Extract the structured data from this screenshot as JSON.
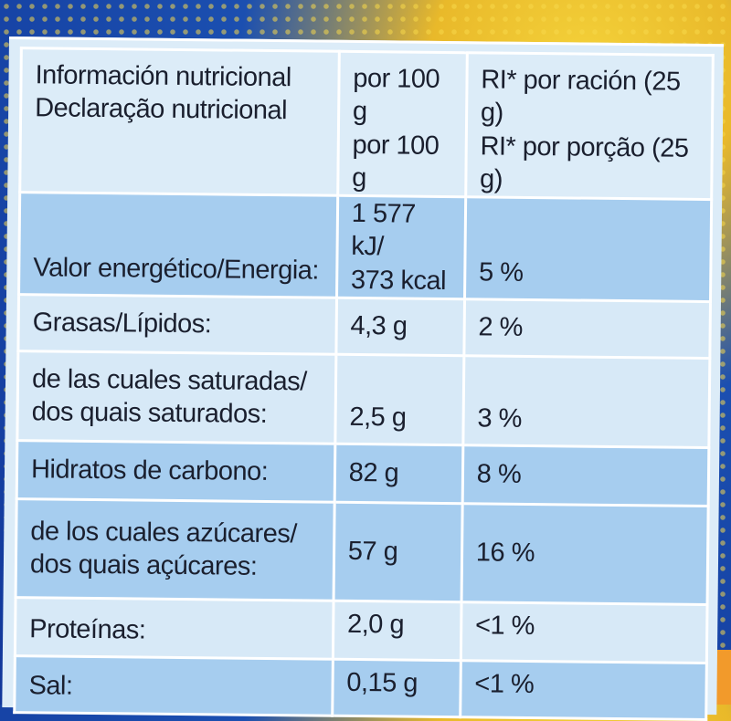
{
  "header": {
    "col1_line1": "Información nutricional",
    "col1_line2": "Declaração nutricional",
    "col2_line1": "por 100 g",
    "col2_line2": "por 100 g",
    "col3_line1": "RI* por ración (25 g)",
    "col3_line2": "RI* por porção (25 g)"
  },
  "rows": [
    {
      "label1": "Valor energético/Energia:",
      "label2": "",
      "per100_line1": "1 577 kJ/",
      "per100_line2": "373 kcal",
      "ri": "5 %"
    },
    {
      "label1": "Grasas/Lípidos:",
      "label2": "",
      "per100_line1": "4,3 g",
      "per100_line2": "",
      "ri": "2 %"
    },
    {
      "label1": "de las cuales saturadas/",
      "label2": "dos quais saturados:",
      "per100_line1": "2,5 g",
      "per100_line2": "",
      "ri": "3 %"
    },
    {
      "label1": "Hidratos de carbono:",
      "label2": "",
      "per100_line1": "82 g",
      "per100_line2": "",
      "ri": "8 %"
    },
    {
      "label1": "de los cuales azúcares/",
      "label2": "dos quais açúcares:",
      "per100_line1": "57 g",
      "per100_line2": "",
      "ri": "16 %"
    },
    {
      "label1": "Proteínas:",
      "label2": "",
      "per100_line1": "2,0 g",
      "per100_line2": "",
      "ri": "<1 %"
    },
    {
      "label1": "Sal:",
      "label2": "",
      "per100_line1": "0,15 g",
      "per100_line2": "",
      "ri": "<1 %"
    }
  ]
}
